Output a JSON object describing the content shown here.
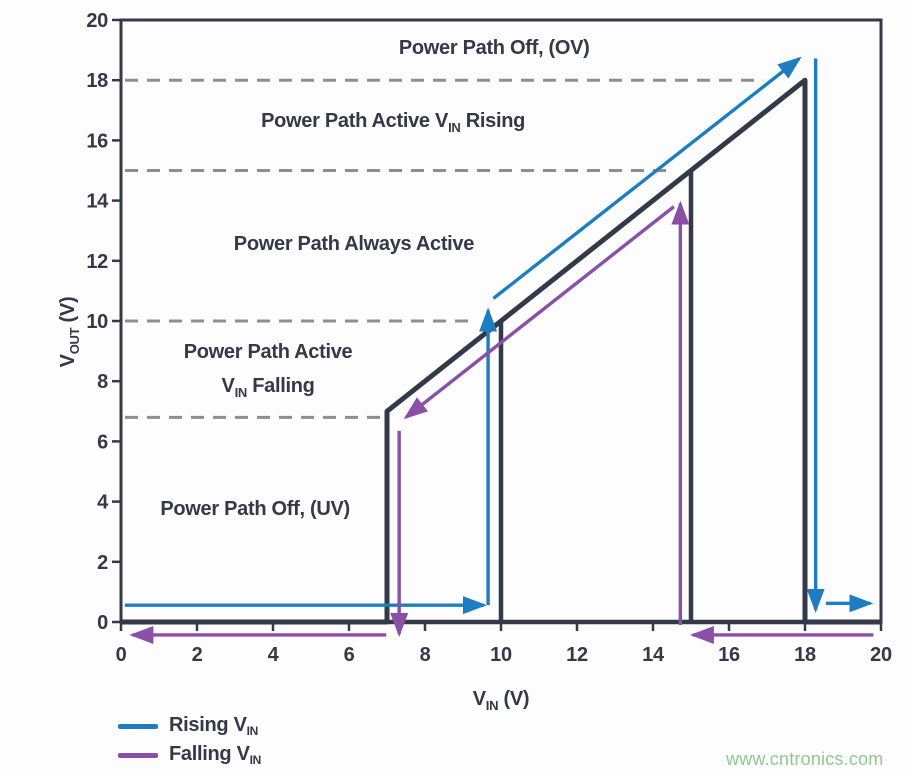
{
  "colors": {
    "background": "#fdfdfd",
    "dark": "#333948",
    "blue": "#1e7dc0",
    "purple": "#8a4fa6",
    "guide_gray": "#8d8e92",
    "watermark_green": "#8fc98f"
  },
  "chart_data": {
    "type": "line",
    "title": "",
    "xlabel_parts": [
      {
        "t": "V"
      },
      {
        "t": "IN",
        "sub": true
      },
      {
        "t": " (V)"
      }
    ],
    "ylabel_parts": [
      {
        "t": "V"
      },
      {
        "t": "OUT",
        "sub": true
      },
      {
        "t": " (V)"
      }
    ],
    "xlim": [
      0,
      20
    ],
    "ylim": [
      0,
      20
    ],
    "xticks": [
      0,
      2,
      4,
      6,
      8,
      10,
      12,
      14,
      16,
      18,
      20
    ],
    "yticks": [
      0,
      2,
      4,
      6,
      8,
      10,
      12,
      14,
      16,
      18,
      20
    ],
    "grid": "off",
    "guides": [
      {
        "y": 18,
        "x_end": 16.9
      },
      {
        "y": 15,
        "x_end": 14.4
      },
      {
        "y": 10,
        "x_end": 9.35
      },
      {
        "y": 6.8,
        "x_end": 6.9
      }
    ],
    "transfer_curve": {
      "main": [
        [
          0,
          0
        ],
        [
          7,
          0
        ],
        [
          7,
          7
        ],
        [
          18,
          18
        ],
        [
          18,
          0
        ],
        [
          20,
          0
        ]
      ],
      "risers": [
        [
          [
            0,
            0
          ],
          [
            20,
            0
          ]
        ],
        [
          [
            10,
            0
          ],
          [
            10,
            10
          ]
        ],
        [
          [
            15,
            0
          ],
          [
            15,
            15
          ]
        ]
      ],
      "key_voltages": {
        "uv_falling": 7,
        "uv_rising": 10,
        "ov_recovery": 15,
        "ov_trip": 18
      }
    },
    "series": [
      {
        "name": "Rising VIN",
        "color": "#1e7dc0",
        "segments": [
          {
            "points": [
              [
                0.1,
                0.56
              ],
              [
                9.55,
                0.56
              ]
            ],
            "arrow": true
          },
          {
            "points": [
              [
                9.66,
                0.56
              ],
              [
                9.66,
                10.35
              ]
            ],
            "arrow": true
          },
          {
            "points": [
              [
                9.8,
                10.75
              ],
              [
                17.85,
                18.72
              ]
            ],
            "arrow": true
          },
          {
            "points": [
              [
                18.28,
                18.72
              ],
              [
                18.28,
                0.4
              ]
            ],
            "arrow": true
          },
          {
            "points": [
              [
                18.55,
                0.62
              ],
              [
                19.72,
                0.62
              ]
            ],
            "arrow": true
          }
        ]
      },
      {
        "name": "Falling VIN",
        "color": "#8a4fa6",
        "segments": [
          {
            "points": [
              [
                19.8,
                -0.43
              ],
              [
                15.05,
                -0.43
              ]
            ],
            "arrow": true
          },
          {
            "points": [
              [
                14.72,
                -0.1
              ],
              [
                14.72,
                13.9
              ]
            ],
            "arrow": true
          },
          {
            "points": [
              [
                14.55,
                13.8
              ],
              [
                7.5,
                6.8
              ]
            ],
            "arrow": true
          },
          {
            "points": [
              [
                7.32,
                6.35
              ],
              [
                7.32,
                -0.4
              ]
            ],
            "arrow": true
          },
          {
            "points": [
              [
                6.98,
                -0.43
              ],
              [
                0.3,
                -0.43
              ]
            ],
            "arrow": true
          }
        ]
      }
    ],
    "annotations": [
      {
        "x": 9.82,
        "y": 19.1,
        "parts": [
          {
            "t": "Power Path Off, (OV)"
          }
        ]
      },
      {
        "x": 7.16,
        "y": 16.68,
        "parts": [
          {
            "t": "Power Path Active V"
          },
          {
            "t": "IN",
            "sub": true
          },
          {
            "t": " Rising"
          }
        ]
      },
      {
        "x": 6.13,
        "y": 12.59,
        "parts": [
          {
            "t": "Power Path Always Active"
          }
        ]
      },
      {
        "x": 3.87,
        "y": 9.0,
        "parts": [
          {
            "t": "Power Path Active"
          }
        ]
      },
      {
        "x": 3.87,
        "y": 7.87,
        "parts": [
          {
            "t": "V"
          },
          {
            "t": "IN",
            "sub": true
          },
          {
            "t": " Falling"
          }
        ]
      },
      {
        "x": 3.53,
        "y": 3.79,
        "parts": [
          {
            "t": "Power Path Off, (UV)"
          }
        ]
      }
    ],
    "legend": {
      "position": "bottom-left",
      "items": [
        {
          "label_main": "Rising V",
          "label_sub": "IN",
          "color": "#1e7dc0"
        },
        {
          "label_main": "Falling V",
          "label_sub": "IN",
          "color": "#8a4fa6"
        }
      ]
    },
    "watermark": "www.cntronics.com"
  }
}
